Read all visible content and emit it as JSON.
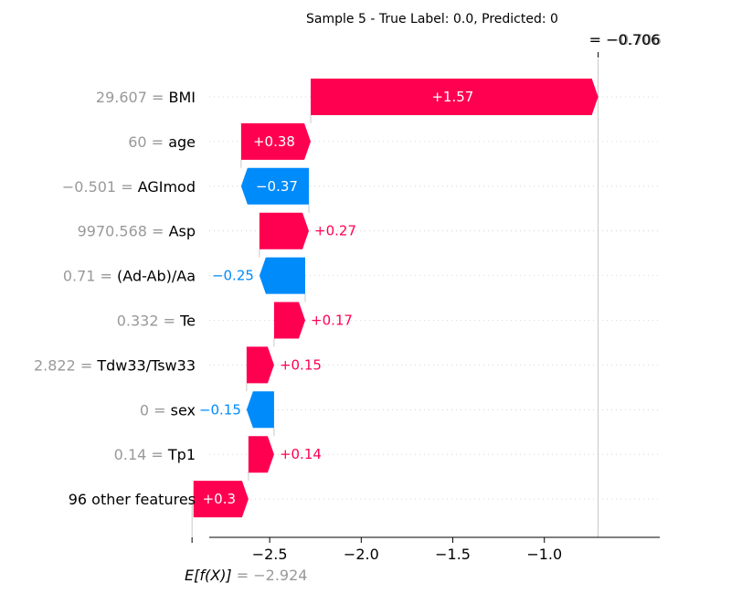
{
  "chart_data": {
    "type": "bar",
    "title": "Sample 5 - True Label: 0.0, Predicted: 0",
    "fx_label": "= −0.706",
    "fx_label_overlap": "−0.706",
    "fx": -0.706,
    "base_value": -2.924,
    "base_label_expr": "E[f(X)]",
    "base_label_value": "= −2.924",
    "xlim": [
      -2.83,
      -0.37
    ],
    "xticks": [
      -2.5,
      -2.0,
      -1.5,
      -1.0
    ],
    "xtick_labels": [
      "−2.5",
      "−2.0",
      "−1.5",
      "−1.0"
    ],
    "features": [
      {
        "value_label": "29.607 =",
        "name": "BMI",
        "shap": 1.57,
        "label": "+1.57"
      },
      {
        "value_label": "60 =",
        "name": "age",
        "shap": 0.38,
        "label": "+0.38"
      },
      {
        "value_label": "−0.501 =",
        "name": "AGImod",
        "shap": -0.37,
        "label": "−0.37"
      },
      {
        "value_label": "9970.568 =",
        "name": "Asp",
        "shap": 0.27,
        "label": "+0.27"
      },
      {
        "value_label": "0.71 =",
        "name": "(Ad-Ab)/Aa",
        "shap": -0.25,
        "label": "−0.25"
      },
      {
        "value_label": "0.332 =",
        "name": "Te",
        "shap": 0.17,
        "label": "+0.17"
      },
      {
        "value_label": "2.822 =",
        "name": "Tdw33/Tsw33",
        "shap": 0.15,
        "label": "+0.15"
      },
      {
        "value_label": "0 =",
        "name": "sex",
        "shap": -0.15,
        "label": "−0.15"
      },
      {
        "value_label": "0.14 =",
        "name": "Tp1",
        "shap": 0.14,
        "label": "+0.14"
      },
      {
        "value_label": "",
        "name": "96 other features",
        "shap": 0.3,
        "label": "+0.3"
      }
    ],
    "colors": {
      "positive": "#ff0051",
      "negative": "#008bfb",
      "value_text": "#999999",
      "label_text": "#000000"
    }
  }
}
